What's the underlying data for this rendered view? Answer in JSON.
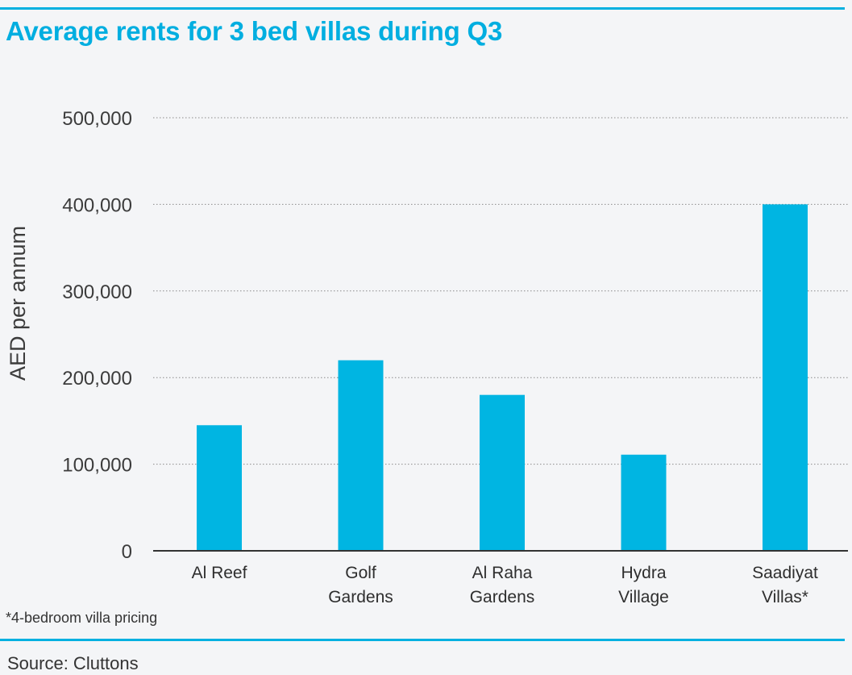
{
  "chart_data": {
    "type": "bar",
    "title": "Average rents for 3 bed villas during Q3",
    "ylabel": "AED per annum",
    "xlabel": "",
    "categories": [
      [
        "Al Reef"
      ],
      [
        "Golf",
        "Gardens"
      ],
      [
        "Al Raha",
        "Gardens"
      ],
      [
        "Hydra",
        "Village"
      ],
      [
        "Saadiyat",
        "Villas*"
      ]
    ],
    "values": [
      145000,
      220000,
      180000,
      111000,
      400000
    ],
    "ylim": [
      0,
      500000
    ],
    "yticks": [
      0,
      100000,
      200000,
      300000,
      400000,
      500000
    ],
    "ytick_labels": [
      "0",
      "100,000",
      "200,000",
      "300,000",
      "400,000",
      "500,000"
    ],
    "grid": true,
    "bar_color": "#00b5e2",
    "accent_color": "#00b0e0"
  },
  "footnote": "*4-bedroom villa pricing",
  "source": "Source: Cluttons"
}
